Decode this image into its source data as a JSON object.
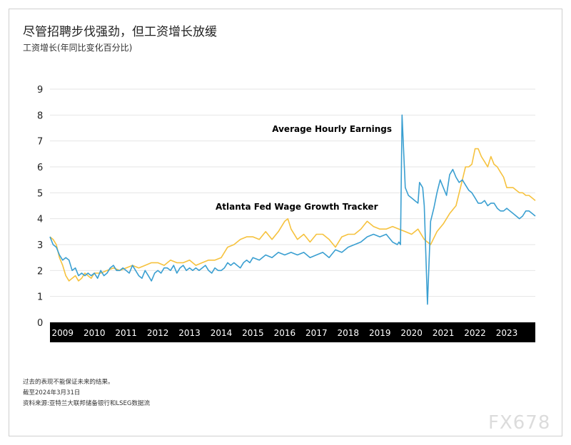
{
  "title": "尽管招聘步伐强劲，但工资增长放缓",
  "subtitle": "工资增长(年同比变化百分比)",
  "notes": [
    "过去的表现不能保证未来的结果。",
    "截至2024年3月31日",
    "资料来源:亚特兰大联邦储备银行和LSEG数据流"
  ],
  "watermark": "FX678",
  "colors": {
    "earnings": "#3a9fd1",
    "tracker": "#f6c23e",
    "axis_band": "#000000",
    "grid": "#e6e6e6"
  },
  "chart_data": {
    "type": "line",
    "ylim": [
      0,
      9
    ],
    "yticks": [
      0,
      1,
      2,
      3,
      4,
      5,
      6,
      7,
      8,
      9
    ],
    "xlim": [
      2008.6,
      2023.9
    ],
    "xticks": [
      "2009",
      "2010",
      "2011",
      "2012",
      "2013",
      "2014",
      "2015",
      "2016",
      "2017",
      "2018",
      "2019",
      "2020",
      "2021",
      "2022",
      "2023"
    ],
    "grid": true,
    "series": [
      {
        "name": "Average Hourly Earnings",
        "color": "#3a9fd1",
        "x": [
          2008.6,
          2008.7,
          2008.8,
          2008.9,
          2009.0,
          2009.1,
          2009.2,
          2009.3,
          2009.4,
          2009.5,
          2009.6,
          2009.7,
          2009.8,
          2009.9,
          2010.0,
          2010.1,
          2010.2,
          2010.3,
          2010.4,
          2010.5,
          2010.6,
          2010.7,
          2010.8,
          2010.9,
          2011.0,
          2011.1,
          2011.2,
          2011.3,
          2011.4,
          2011.5,
          2011.6,
          2011.7,
          2011.8,
          2011.9,
          2012.0,
          2012.1,
          2012.2,
          2012.3,
          2012.4,
          2012.5,
          2012.6,
          2012.7,
          2012.8,
          2012.9,
          2013.0,
          2013.1,
          2013.2,
          2013.3,
          2013.4,
          2013.5,
          2013.6,
          2013.7,
          2013.8,
          2013.9,
          2014.0,
          2014.1,
          2014.2,
          2014.3,
          2014.4,
          2014.5,
          2014.6,
          2014.7,
          2014.8,
          2014.9,
          2015.0,
          2015.2,
          2015.4,
          2015.6,
          2015.8,
          2016.0,
          2016.2,
          2016.4,
          2016.6,
          2016.8,
          2017.0,
          2017.2,
          2017.4,
          2017.6,
          2017.8,
          2018.0,
          2018.2,
          2018.4,
          2018.6,
          2018.8,
          2019.0,
          2019.2,
          2019.4,
          2019.55,
          2019.6,
          2019.65,
          2019.7,
          2019.8,
          2019.9,
          2020.0,
          2020.1,
          2020.2,
          2020.25,
          2020.3,
          2020.35,
          2020.4,
          2020.5,
          2020.6,
          2020.7,
          2020.8,
          2020.9,
          2021.0,
          2021.1,
          2021.2,
          2021.3,
          2021.4,
          2021.5,
          2021.6,
          2021.7,
          2021.8,
          2021.9,
          2022.0,
          2022.1,
          2022.2,
          2022.3,
          2022.4,
          2022.5,
          2022.6,
          2022.7,
          2022.8,
          2022.9,
          2023.0,
          2023.1,
          2023.2,
          2023.3,
          2023.4,
          2023.5,
          2023.6,
          2023.7,
          2023.8,
          2023.9
        ],
        "y": [
          3.3,
          3.0,
          2.9,
          2.6,
          2.4,
          2.5,
          2.4,
          2.0,
          2.1,
          1.8,
          1.9,
          1.8,
          1.9,
          1.8,
          1.9,
          1.7,
          2.0,
          1.8,
          1.9,
          2.1,
          2.2,
          2.0,
          2.0,
          2.1,
          2.0,
          1.9,
          2.2,
          2.0,
          1.8,
          1.7,
          2.0,
          1.8,
          1.6,
          1.9,
          2.0,
          1.9,
          2.1,
          2.1,
          2.0,
          2.2,
          1.9,
          2.1,
          2.2,
          2.0,
          2.1,
          2.0,
          2.1,
          2.0,
          2.1,
          2.2,
          2.0,
          1.9,
          2.1,
          2.0,
          2.0,
          2.1,
          2.3,
          2.2,
          2.3,
          2.2,
          2.1,
          2.3,
          2.4,
          2.3,
          2.5,
          2.4,
          2.6,
          2.5,
          2.7,
          2.6,
          2.7,
          2.6,
          2.7,
          2.5,
          2.6,
          2.7,
          2.5,
          2.8,
          2.7,
          2.9,
          3.0,
          3.1,
          3.3,
          3.4,
          3.3,
          3.4,
          3.1,
          3.0,
          3.1,
          3.0,
          8.0,
          5.2,
          4.9,
          4.8,
          4.7,
          4.6,
          5.4,
          5.3,
          5.2,
          4.5,
          0.7,
          3.9,
          4.4,
          5.0,
          5.5,
          5.2,
          4.9,
          5.7,
          5.9,
          5.6,
          5.4,
          5.5,
          5.3,
          5.1,
          5.0,
          4.8,
          4.6,
          4.6,
          4.7,
          4.5,
          4.6,
          4.6,
          4.4,
          4.3,
          4.3,
          4.4,
          4.3,
          4.2,
          4.1,
          4.0,
          4.1,
          4.3,
          4.3,
          4.2,
          4.1
        ]
      },
      {
        "name": "Atlanta Fed Wage Growth Tracker",
        "color": "#f6c23e",
        "x": [
          2008.6,
          2008.7,
          2008.8,
          2008.9,
          2009.0,
          2009.1,
          2009.2,
          2009.3,
          2009.4,
          2009.5,
          2009.6,
          2009.7,
          2009.8,
          2009.9,
          2010.0,
          2010.2,
          2010.4,
          2010.6,
          2010.8,
          2011.0,
          2011.2,
          2011.4,
          2011.6,
          2011.8,
          2012.0,
          2012.2,
          2012.4,
          2012.6,
          2012.8,
          2013.0,
          2013.2,
          2013.4,
          2013.6,
          2013.8,
          2014.0,
          2014.2,
          2014.4,
          2014.6,
          2014.8,
          2015.0,
          2015.2,
          2015.4,
          2015.6,
          2015.8,
          2016.0,
          2016.1,
          2016.2,
          2016.4,
          2016.6,
          2016.8,
          2017.0,
          2017.2,
          2017.4,
          2017.6,
          2017.8,
          2018.0,
          2018.2,
          2018.4,
          2018.6,
          2018.8,
          2019.0,
          2019.2,
          2019.4,
          2019.6,
          2019.8,
          2020.0,
          2020.2,
          2020.4,
          2020.6,
          2020.8,
          2021.0,
          2021.2,
          2021.4,
          2021.6,
          2021.7,
          2021.8,
          2021.9,
          2022.0,
          2022.1,
          2022.2,
          2022.3,
          2022.4,
          2022.5,
          2022.6,
          2022.7,
          2022.8,
          2022.9,
          2023.0,
          2023.1,
          2023.2,
          2023.3,
          2023.4,
          2023.5,
          2023.6,
          2023.7,
          2023.8,
          2023.9
        ],
        "y": [
          3.3,
          3.2,
          3.0,
          2.5,
          2.2,
          1.8,
          1.6,
          1.7,
          1.8,
          1.6,
          1.7,
          1.9,
          1.8,
          1.7,
          1.9,
          1.9,
          2.0,
          2.1,
          2.0,
          2.1,
          2.2,
          2.1,
          2.2,
          2.3,
          2.3,
          2.2,
          2.4,
          2.3,
          2.3,
          2.4,
          2.2,
          2.3,
          2.4,
          2.4,
          2.5,
          2.9,
          3.0,
          3.2,
          3.3,
          3.3,
          3.2,
          3.5,
          3.2,
          3.5,
          3.9,
          4.0,
          3.6,
          3.2,
          3.4,
          3.1,
          3.4,
          3.4,
          3.2,
          2.9,
          3.3,
          3.4,
          3.4,
          3.6,
          3.9,
          3.7,
          3.6,
          3.6,
          3.7,
          3.6,
          3.5,
          3.4,
          3.6,
          3.2,
          3.0,
          3.5,
          3.8,
          4.2,
          4.5,
          5.5,
          6.0,
          6.0,
          6.1,
          6.7,
          6.7,
          6.4,
          6.2,
          6.0,
          6.4,
          6.1,
          6.0,
          5.8,
          5.6,
          5.2,
          5.2,
          5.2,
          5.1,
          5.0,
          5.0,
          4.9,
          4.9,
          4.8,
          4.7
        ]
      }
    ],
    "annotations": [
      "Average Hourly Earnings",
      "Atlanta Fed Wage Growth Tracker"
    ]
  }
}
